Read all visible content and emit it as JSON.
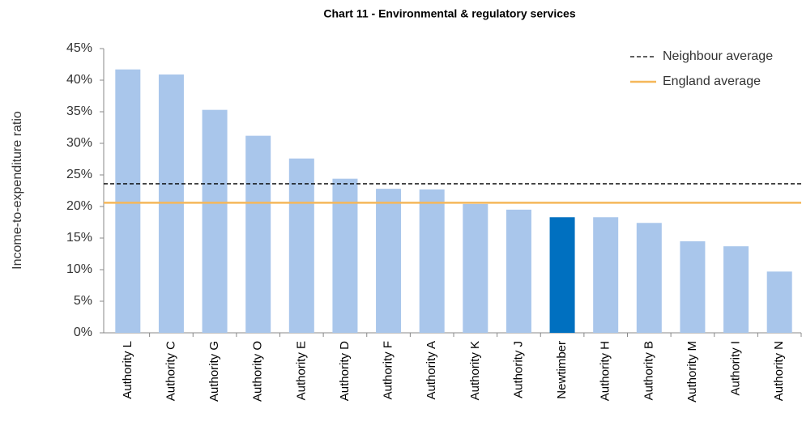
{
  "chart_data": {
    "type": "bar",
    "title": "Chart 11 - Environmental & regulatory services",
    "y_label": "Income-to-expenditure ratio",
    "categories": [
      "Authority L",
      "Authority C",
      "Authority G",
      "Authority O",
      "Authority E",
      "Authority D",
      "Authority F",
      "Authority A",
      "Authority K",
      "Authority J",
      "Newtimber",
      "Authority H",
      "Authority B",
      "Authority M",
      "Authority I",
      "Authority N"
    ],
    "values": [
      41.7,
      40.9,
      35.3,
      31.2,
      27.6,
      24.4,
      22.8,
      22.7,
      20.4,
      19.5,
      18.3,
      18.3,
      17.4,
      14.5,
      13.7,
      9.7
    ],
    "colors": [
      "#a9c6eb",
      "#a9c6eb",
      "#a9c6eb",
      "#a9c6eb",
      "#a9c6eb",
      "#a9c6eb",
      "#a9c6eb",
      "#a9c6eb",
      "#a9c6eb",
      "#a9c6eb",
      "#0070c0",
      "#a9c6eb",
      "#a9c6eb",
      "#a9c6eb",
      "#a9c6eb",
      "#a9c6eb"
    ],
    "reference_lines": [
      {
        "name": "Neighbour average",
        "value": 23.6,
        "color": "#000000",
        "style": "dashed"
      },
      {
        "name": "England average",
        "value": 20.6,
        "color": "#f5b75a",
        "style": "solid"
      }
    ],
    "ylim": [
      0,
      45
    ],
    "yticks": [
      {
        "value": 0,
        "label": "0%"
      },
      {
        "value": 5,
        "label": "5%"
      },
      {
        "value": 10,
        "label": "10%"
      },
      {
        "value": 15,
        "label": "15%"
      },
      {
        "value": 20,
        "label": "20%"
      },
      {
        "value": 25,
        "label": "25%"
      },
      {
        "value": 30,
        "label": "30%"
      },
      {
        "value": 35,
        "label": "35%"
      },
      {
        "value": 40,
        "label": "40%"
      },
      {
        "value": 45,
        "label": "45%"
      }
    ],
    "legend": "top-right"
  }
}
